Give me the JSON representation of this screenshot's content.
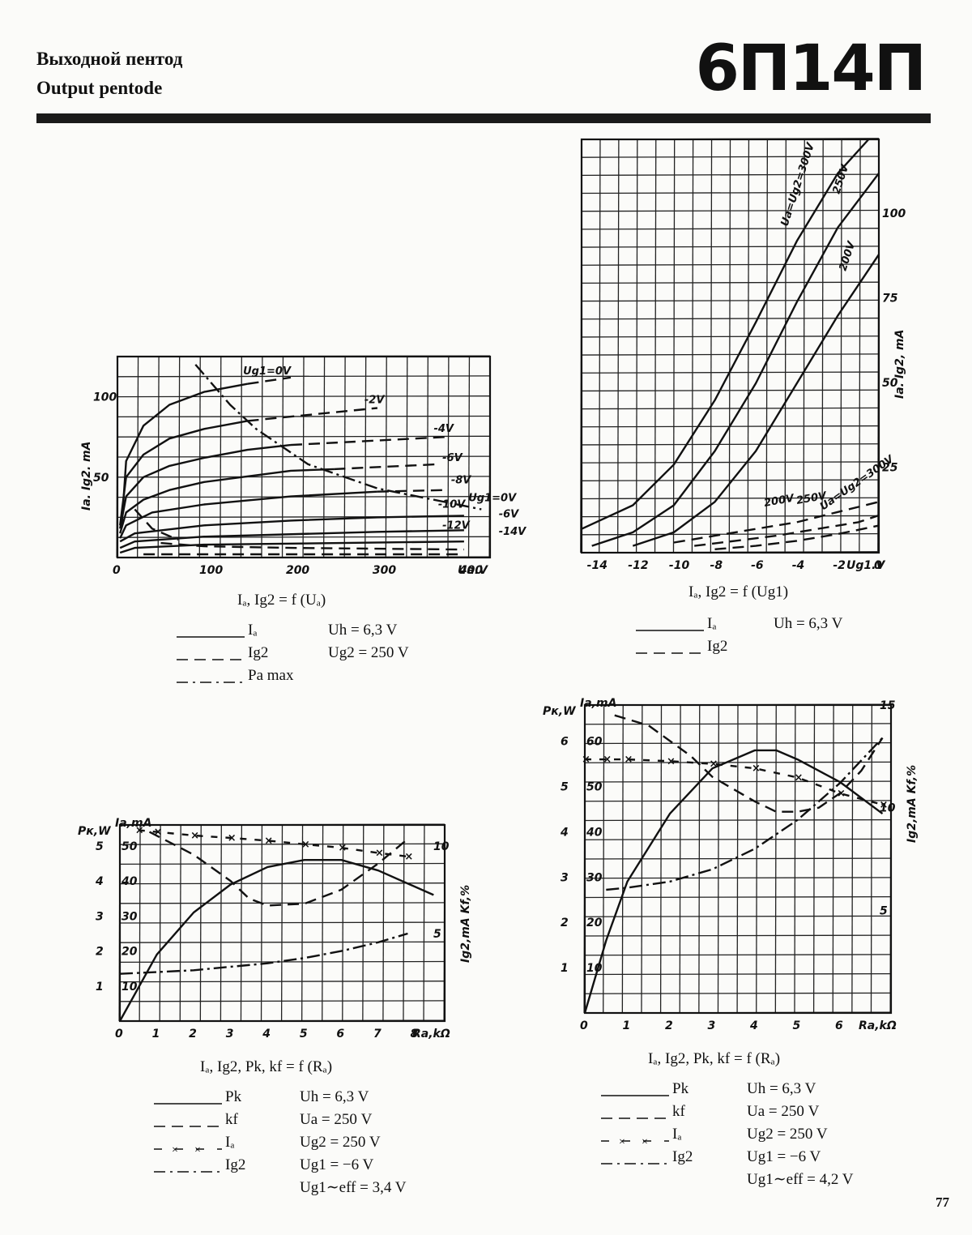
{
  "header": {
    "title_ru": "Выходной пентод",
    "title_en": "Output pentode",
    "tube_type": "6П14П",
    "page_number": "77"
  },
  "chart_data": [
    {
      "id": "anode_characteristics",
      "type": "line",
      "caption": "Iₐ, Ig2 = f (Uₐ)",
      "ylabel": "Ia. Ig2. mA",
      "xlabel": "Ua.V",
      "xlim": [
        0,
        430
      ],
      "ylim": [
        0,
        125
      ],
      "xticks": [
        "0",
        "100",
        "200",
        "300",
        "400"
      ],
      "yticks": [
        "50",
        "100"
      ],
      "legend": [
        {
          "label": "Iₐ",
          "style": "solid"
        },
        {
          "label": "Ig2",
          "style": "dashed"
        },
        {
          "label": "Pa max",
          "style": "dashdot"
        }
      ],
      "conditions": [
        "Uh = 6,3 V",
        "Ug2 = 250 V"
      ],
      "series": [
        {
          "name": "Ug1=0V",
          "style": "solid",
          "x": [
            5,
            10,
            30,
            60,
            100,
            150
          ],
          "y": [
            20,
            60,
            82,
            95,
            103,
            108
          ]
        },
        {
          "name": "Ug1=0V",
          "style": "dashed",
          "x": [
            150,
            200
          ],
          "y": [
            108,
            112
          ]
        },
        {
          "name": "-2V",
          "style": "solid",
          "x": [
            3,
            10,
            30,
            60,
            100,
            150
          ],
          "y": [
            20,
            50,
            64,
            74,
            80,
            85
          ]
        },
        {
          "name": "-2V",
          "style": "dashed",
          "x": [
            150,
            300
          ],
          "y": [
            85,
            93
          ]
        },
        {
          "name": "-4V",
          "style": "solid",
          "x": [
            3,
            10,
            30,
            60,
            100,
            150,
            200
          ],
          "y": [
            18,
            38,
            50,
            57,
            62,
            67,
            70
          ]
        },
        {
          "name": "-4V",
          "style": "dashed",
          "x": [
            200,
            380
          ],
          "y": [
            70,
            75
          ]
        },
        {
          "name": "-6V",
          "style": "solid",
          "x": [
            3,
            10,
            30,
            60,
            100,
            200,
            250
          ],
          "y": [
            15,
            28,
            36,
            42,
            47,
            54,
            55
          ]
        },
        {
          "name": "-6V",
          "style": "dashed",
          "x": [
            250,
            370
          ],
          "y": [
            55,
            58
          ]
        },
        {
          "name": "-8V",
          "style": "solid",
          "x": [
            3,
            10,
            40,
            100,
            200,
            300
          ],
          "y": [
            12,
            20,
            28,
            33,
            38,
            41
          ]
        },
        {
          "name": "-8V",
          "style": "dashed",
          "x": [
            300,
            380
          ],
          "y": [
            41,
            42
          ]
        },
        {
          "name": "-10V",
          "style": "solid",
          "x": [
            3,
            20,
            100,
            200,
            300,
            400
          ],
          "y": [
            10,
            15,
            20,
            23,
            25,
            26
          ]
        },
        {
          "name": "-12V",
          "style": "solid",
          "x": [
            3,
            20,
            100,
            300,
            400
          ],
          "y": [
            6,
            10,
            13,
            16,
            17
          ]
        },
        {
          "name": "-14V",
          "style": "solid",
          "x": [
            3,
            20,
            100,
            400
          ],
          "y": [
            3,
            6,
            8,
            10
          ]
        },
        {
          "name": "Ug1=0V",
          "style": "dashed",
          "x": [
            20,
            40,
            70
          ],
          "y": [
            30,
            18,
            11
          ]
        },
        {
          "name": "-6V",
          "style": "dashed",
          "x": [
            50,
            100,
            200,
            400
          ],
          "y": [
            9,
            7,
            6,
            5
          ]
        },
        {
          "name": "-14V",
          "style": "dashed",
          "x": [
            30,
            100,
            400
          ],
          "y": [
            2,
            2,
            2
          ]
        },
        {
          "name": "Pa max",
          "style": "dashdot",
          "x": [
            90,
            130,
            160,
            220,
            300,
            420
          ],
          "y": [
            120,
            95,
            80,
            58,
            43,
            30
          ]
        }
      ],
      "annotations": [
        "Ug1=0V",
        "-2V",
        "-4V",
        "-6V",
        "-8V",
        "-10V",
        "-12V",
        "Ug1=0V",
        "-6V",
        "-14V"
      ]
    },
    {
      "id": "grid_characteristics",
      "type": "line",
      "caption": "Iₐ, Ig2 = f (Ug1)",
      "ylabel": "Ia. Ig2, mA",
      "xlabel": "Ug1.V",
      "xlim": [
        -14.5,
        0
      ],
      "ylim": [
        0,
        122
      ],
      "xticks": [
        "-14",
        "-12",
        "-10",
        "-8",
        "-6",
        "-4",
        "-2",
        "0"
      ],
      "yticks": [
        "25",
        "50",
        "75",
        "100"
      ],
      "legend": [
        {
          "label": "Iₐ",
          "style": "solid"
        },
        {
          "label": "Ig2",
          "style": "dashed"
        }
      ],
      "conditions": [
        "Uh = 6,3 V"
      ],
      "series": [
        {
          "name": "Ua=Ug2=300V",
          "style": "solid",
          "x": [
            -14.5,
            -12,
            -10,
            -8,
            -6,
            -4,
            -2,
            -0.5
          ],
          "y": [
            7,
            14,
            26,
            45,
            68,
            92,
            112,
            122
          ]
        },
        {
          "name": "250V",
          "style": "solid",
          "x": [
            -14,
            -12,
            -10,
            -8,
            -6,
            -4,
            -2,
            0
          ],
          "y": [
            2,
            6,
            14,
            30,
            50,
            74,
            96,
            112
          ]
        },
        {
          "name": "200V",
          "style": "solid",
          "x": [
            -12,
            -10,
            -8,
            -6,
            -4,
            -2,
            0
          ],
          "y": [
            2,
            6,
            15,
            30,
            50,
            70,
            88
          ]
        },
        {
          "name": "Ug2=Ug=300V",
          "style": "dashed",
          "x": [
            -10,
            -8,
            -6,
            -4,
            -2,
            0
          ],
          "y": [
            3,
            5,
            7,
            9,
            12,
            15
          ]
        },
        {
          "name": "250V",
          "style": "dashed",
          "x": [
            -9,
            -7,
            -5,
            -3,
            -1,
            0
          ],
          "y": [
            2,
            3.5,
            5,
            7,
            9,
            11
          ]
        },
        {
          "name": "200V",
          "style": "dashed",
          "x": [
            -8,
            -6,
            -4,
            -2,
            0
          ],
          "y": [
            1,
            2,
            3.5,
            5.5,
            8
          ]
        }
      ],
      "annotations": [
        "Ua=Ug2=300V",
        "250V",
        "200V",
        "200V",
        "250V",
        "Ua=Ug2=300V"
      ]
    },
    {
      "id": "load_characteristics_1",
      "type": "line",
      "caption": "Iₐ, Ig2, Pk, kf = f (Rₐ)",
      "xlabel": "Ra,kΩ",
      "ylabel_left": "Pк,W",
      "ylabel_left2": "Ia,mA",
      "ylabel_right": "Ig2,mA Kf,%",
      "xlim": [
        0,
        8.8
      ],
      "ylim": [
        0,
        5.6
      ],
      "y2lim": [
        0,
        56
      ],
      "y3lim": [
        0,
        11.2
      ],
      "xticks": [
        "0",
        "1",
        "2",
        "3",
        "4",
        "5",
        "6",
        "7",
        "8"
      ],
      "yticks": [
        "1",
        "2",
        "3",
        "4",
        "5"
      ],
      "y2ticks": [
        "10",
        "20",
        "30",
        "40",
        "50"
      ],
      "y3ticks": [
        "5",
        "10"
      ],
      "legend": [
        {
          "label": "Pk",
          "style": "solid"
        },
        {
          "label": "kf",
          "style": "dashed"
        },
        {
          "label": "Iₐ",
          "style": "cross"
        },
        {
          "label": "Ig2",
          "style": "dashdot"
        }
      ],
      "conditions": [
        "Uh = 6,3 V",
        "Uа = 250 V",
        "Ug2 = 250 V",
        "Ug1 = −6 V",
        "Ug1∼eff = 3,4 V"
      ],
      "series": [
        {
          "name": "Pk",
          "style": "solid",
          "x": [
            0,
            1,
            2,
            3,
            4,
            5,
            6,
            7,
            8.5
          ],
          "y": [
            0,
            1.9,
            3.1,
            3.9,
            4.4,
            4.6,
            4.6,
            4.3,
            3.6
          ]
        },
        {
          "name": "kf",
          "style": "dashed",
          "x": [
            0.8,
            2,
            3,
            3.5,
            4,
            5,
            6,
            7,
            7.8
          ],
          "y": [
            10.8,
            9.5,
            8,
            7,
            6.6,
            6.7,
            7.5,
            9,
            10.4
          ]
        },
        {
          "name": "Iₐ",
          "style": "cross",
          "x": [
            0.5,
            1,
            2,
            3,
            4,
            5,
            6,
            7,
            7.8
          ],
          "y": [
            54.5,
            54,
            53,
            52.3,
            51.5,
            50.5,
            49.5,
            48,
            47
          ]
        },
        {
          "name": "Ig2",
          "style": "dashdot",
          "x": [
            0,
            1,
            2,
            3,
            4,
            5,
            6,
            7,
            7.8
          ],
          "y": [
            2.7,
            2.8,
            2.9,
            3.1,
            3.3,
            3.6,
            4.0,
            4.5,
            5.0
          ]
        }
      ]
    },
    {
      "id": "load_characteristics_2",
      "type": "line",
      "caption": "Iₐ, Ig2, Pk, kf = f (Rₐ)",
      "xlabel": "Ra,kΩ",
      "ylabel_left": "Pк,W",
      "ylabel_left2": "Ia,mA",
      "ylabel_right": "Ig2,mA Kf,%",
      "xlim": [
        0,
        7.2
      ],
      "ylim": [
        0,
        6.8
      ],
      "y2lim": [
        0,
        68
      ],
      "y3lim": [
        0,
        15
      ],
      "xticks": [
        "0",
        "1",
        "2",
        "3",
        "4",
        "5",
        "6"
      ],
      "yticks": [
        "1",
        "2",
        "3",
        "4",
        "5",
        "6"
      ],
      "y2ticks": [
        "10",
        "20",
        "30",
        "40",
        "50",
        "60"
      ],
      "y3ticks": [
        "5",
        "10",
        "15"
      ],
      "legend": [
        {
          "label": "Pk",
          "style": "solid"
        },
        {
          "label": "kf",
          "style": "dashed"
        },
        {
          "label": "Iₐ",
          "style": "cross"
        },
        {
          "label": "Ig2",
          "style": "dashdot"
        }
      ],
      "conditions": [
        "Uh = 6,3 V",
        "Uа = 250 V",
        "Ug2 = 250 V",
        "Ug1 = −6 V",
        "Ug1∼eff = 4,2 V"
      ],
      "series": [
        {
          "name": "Pk",
          "style": "solid",
          "x": [
            0,
            0.5,
            1,
            2,
            3,
            4,
            4.5,
            5,
            6,
            7
          ],
          "y": [
            0,
            1.6,
            2.9,
            4.4,
            5.4,
            5.8,
            5.8,
            5.6,
            5.1,
            4.4
          ]
        },
        {
          "name": "kf",
          "style": "dashed",
          "x": [
            0.7,
            1.5,
            2.5,
            3,
            4,
            4.5,
            5,
            5.5,
            6,
            6.5,
            7
          ],
          "y": [
            14.5,
            14,
            12.5,
            11.5,
            10.3,
            9.8,
            9.8,
            10,
            10.7,
            11.8,
            13.4
          ]
        },
        {
          "name": "Iₐ",
          "style": "cross",
          "x": [
            0,
            0.5,
            1,
            2,
            3,
            4,
            5,
            6,
            7
          ],
          "y": [
            56,
            56,
            56,
            55.6,
            55,
            54,
            52,
            48.5,
            46
          ]
        },
        {
          "name": "Ig2",
          "style": "dashdot",
          "x": [
            0.5,
            1,
            2,
            3,
            4,
            5,
            6,
            7
          ],
          "y": [
            6,
            6.1,
            6.4,
            7.0,
            8.0,
            9.4,
            11.2,
            13.4
          ]
        }
      ]
    }
  ]
}
